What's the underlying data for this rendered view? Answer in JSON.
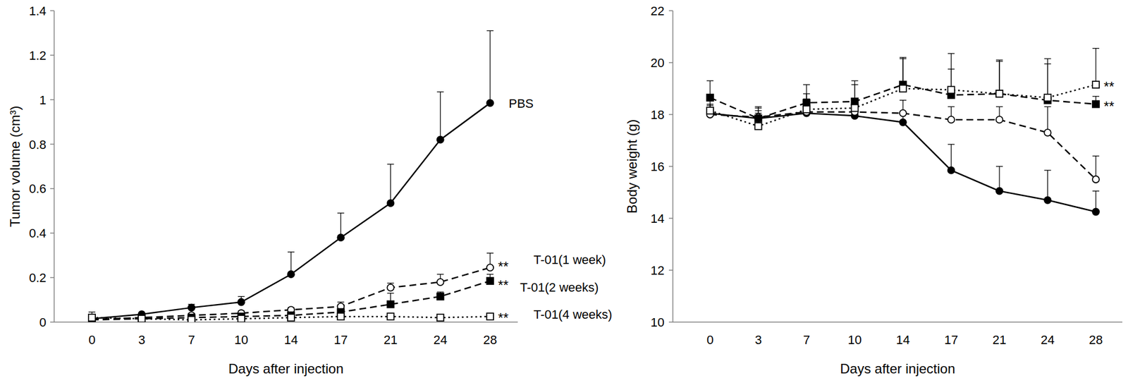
{
  "chart_data": [
    {
      "type": "line",
      "y_label": "Tumor volume (cm³)",
      "x_label": "Days after injection",
      "categories": [
        "0",
        "3",
        "7",
        "10",
        "14",
        "17",
        "21",
        "24",
        "28"
      ],
      "ylim": [
        0,
        1.4
      ],
      "yticks": [
        0,
        0.2,
        0.4,
        0.6,
        0.8,
        1,
        1.2,
        1.4
      ],
      "series": [
        {
          "name": "PBS",
          "color": "#000000",
          "marker": "circle-filled",
          "line_style": "solid",
          "values": [
            0.015,
            0.035,
            0.065,
            0.09,
            0.215,
            0.38,
            0.535,
            0.82,
            0.985
          ],
          "errors": [
            0.03,
            0.005,
            0.015,
            0.025,
            0.1,
            0.11,
            0.175,
            0.215,
            0.325
          ]
        },
        {
          "name": "T-01(1 week)",
          "color": "#000000",
          "marker": "circle-open",
          "line_style": "dashed",
          "significance": "**",
          "values": [
            0.012,
            0.02,
            0.03,
            0.04,
            0.055,
            0.07,
            0.155,
            0.18,
            0.245
          ],
          "errors": [
            0.005,
            0.005,
            0.01,
            0.01,
            0.01,
            0.02,
            0.02,
            0.035,
            0.065
          ]
        },
        {
          "name": "T-01(2 weeks)",
          "color": "#000000",
          "marker": "square-filled",
          "line_style": "dashed",
          "significance": "**",
          "values": [
            0.01,
            0.015,
            0.02,
            0.025,
            0.03,
            0.045,
            0.08,
            0.115,
            0.185
          ],
          "errors": [
            0.005,
            0.005,
            0.005,
            0.01,
            0.01,
            0.015,
            0.05,
            0.02,
            0.03
          ]
        },
        {
          "name": "T-01(4 weeks)",
          "color": "#000000",
          "marker": "square-open",
          "line_style": "dotted",
          "significance": "**",
          "values": [
            0.02,
            0.015,
            0.01,
            0.015,
            0.02,
            0.025,
            0.025,
            0.02,
            0.025
          ],
          "errors": [
            0.01,
            0.005,
            0.005,
            0.005,
            0.005,
            0.005,
            0.01,
            0.005,
            0.01
          ]
        }
      ]
    },
    {
      "type": "line",
      "y_label": "Body weight (g)",
      "x_label": "Days after injection",
      "categories": [
        "0",
        "3",
        "7",
        "10",
        "14",
        "17",
        "21",
        "24",
        "28"
      ],
      "ylim": [
        10,
        22
      ],
      "yticks": [
        10,
        12,
        14,
        16,
        18,
        20,
        22
      ],
      "series": [
        {
          "color": "#000000",
          "marker": "circle-filled",
          "line_style": "solid",
          "values": [
            18.05,
            17.85,
            18.05,
            17.95,
            17.7,
            15.85,
            15.05,
            14.7,
            14.25
          ],
          "errors": [
            0.3,
            0.3,
            0.3,
            0.3,
            0.3,
            1.0,
            0.95,
            1.15,
            0.8
          ]
        },
        {
          "color": "#000000",
          "marker": "circle-open",
          "line_style": "dashed",
          "values": [
            18.0,
            17.9,
            18.1,
            18.1,
            18.05,
            17.8,
            17.8,
            17.3,
            15.5
          ],
          "errors": [
            0.4,
            0.4,
            0.5,
            0.5,
            0.5,
            0.5,
            0.5,
            1.0,
            0.9
          ]
        },
        {
          "color": "#000000",
          "marker": "square-filled",
          "line_style": "dashed",
          "significance": "**",
          "values": [
            18.65,
            17.85,
            18.45,
            18.5,
            19.15,
            18.75,
            18.8,
            18.55,
            18.4
          ],
          "errors": [
            0.65,
            0.4,
            0.7,
            0.8,
            1.0,
            1.0,
            1.25,
            1.4,
            0.3
          ]
        },
        {
          "color": "#000000",
          "marker": "square-open",
          "line_style": "dotted",
          "significance": "**",
          "values": [
            18.15,
            17.55,
            18.2,
            18.25,
            19.0,
            18.95,
            18.8,
            18.65,
            19.15
          ],
          "errors": [
            0.5,
            0.5,
            0.6,
            0.9,
            1.2,
            1.4,
            1.3,
            1.5,
            1.4
          ]
        }
      ]
    }
  ]
}
